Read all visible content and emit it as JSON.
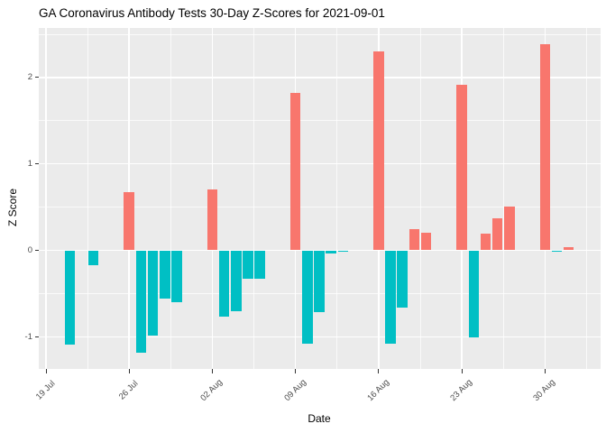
{
  "chart_data": {
    "type": "bar",
    "title": "GA Coronavirus Antibody Tests 30-Day Z-Scores for 2021-09-01",
    "xlabel": "Date",
    "ylabel": "Z Score",
    "x_start": "2021-07-19",
    "x_ticks": [
      {
        "date": "2021-07-19",
        "label": "19 Jul"
      },
      {
        "date": "2021-07-26",
        "label": "26 Jul"
      },
      {
        "date": "2021-08-02",
        "label": "02 Aug"
      },
      {
        "date": "2021-08-09",
        "label": "09 Aug"
      },
      {
        "date": "2021-08-16",
        "label": "16 Aug"
      },
      {
        "date": "2021-08-23",
        "label": "23 Aug"
      },
      {
        "date": "2021-08-30",
        "label": "30 Aug"
      }
    ],
    "y_ticks": [
      {
        "value": 2,
        "label": "2"
      },
      {
        "value": 1,
        "label": "1"
      },
      {
        "value": 0,
        "label": "0"
      },
      {
        "value": -1,
        "label": "-1"
      }
    ],
    "y_minor_ticks": [
      2.5,
      1.5,
      0.5,
      -0.5
    ],
    "ylim": [
      -1.37,
      2.58
    ],
    "grid": true,
    "legend": false,
    "points": [
      {
        "date": "2021-07-21",
        "value": -1.09
      },
      {
        "date": "2021-07-23",
        "value": -0.17
      },
      {
        "date": "2021-07-26",
        "value": 0.67
      },
      {
        "date": "2021-07-27",
        "value": -1.18
      },
      {
        "date": "2021-07-28",
        "value": -0.99
      },
      {
        "date": "2021-07-29",
        "value": -0.56
      },
      {
        "date": "2021-07-30",
        "value": -0.6
      },
      {
        "date": "2021-08-02",
        "value": 0.7
      },
      {
        "date": "2021-08-03",
        "value": -0.77
      },
      {
        "date": "2021-08-04",
        "value": -0.7
      },
      {
        "date": "2021-08-05",
        "value": -0.33
      },
      {
        "date": "2021-08-06",
        "value": -0.33
      },
      {
        "date": "2021-08-09",
        "value": 1.82
      },
      {
        "date": "2021-08-10",
        "value": -1.08
      },
      {
        "date": "2021-08-11",
        "value": -0.72
      },
      {
        "date": "2021-08-12",
        "value": -0.04
      },
      {
        "date": "2021-08-13",
        "value": -0.02
      },
      {
        "date": "2021-08-16",
        "value": 2.3
      },
      {
        "date": "2021-08-17",
        "value": -1.08
      },
      {
        "date": "2021-08-18",
        "value": -0.66
      },
      {
        "date": "2021-08-19",
        "value": 0.25
      },
      {
        "date": "2021-08-20",
        "value": 0.2
      },
      {
        "date": "2021-08-23",
        "value": 1.92
      },
      {
        "date": "2021-08-24",
        "value": -1.01
      },
      {
        "date": "2021-08-25",
        "value": 0.19
      },
      {
        "date": "2021-08-26",
        "value": 0.37
      },
      {
        "date": "2021-08-27",
        "value": 0.51
      },
      {
        "date": "2021-08-30",
        "value": 2.39
      },
      {
        "date": "2021-08-31",
        "value": -0.02
      },
      {
        "date": "2021-09-01",
        "value": 0.04
      }
    ],
    "colors": {
      "positive_bar": "#F8766D",
      "negative_bar": "#00BFC4",
      "panel_background": "#EBEBEB",
      "gridline": "#FFFFFF",
      "axis_text": "#4D4D4D",
      "title_text": "#000000"
    }
  }
}
